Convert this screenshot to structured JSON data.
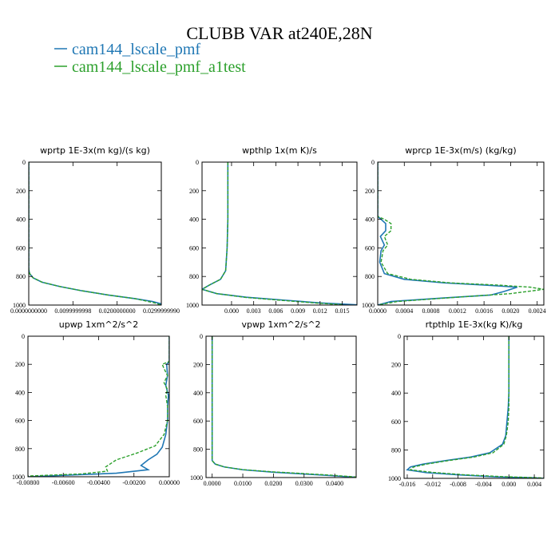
{
  "title": "CLUBB VAR at240E,28N",
  "colors": {
    "series1": "#1f77b4",
    "series2": "#2ca02c"
  },
  "legend": [
    {
      "label": "cam144_lscale_pmf",
      "color": "#1f77b4",
      "dash": "solid"
    },
    {
      "label": "cam144_lscale_pmf_a1test",
      "color": "#2ca02c",
      "dash": "dashed"
    }
  ],
  "chart_data": [
    {
      "type": "line",
      "title": "wprtp  1E-3x(m kg)/(s kg)",
      "xlim": [
        0,
        0.03
      ],
      "ylim": [
        1000,
        0
      ],
      "x_ticks": [
        0,
        0.01,
        0.02,
        0.03
      ],
      "x_tick_labels": [
        "0.0000000000",
        "0.0099999998",
        "0.0200000000",
        "0.0299999990"
      ],
      "y_ticks": [
        0,
        200,
        400,
        600,
        800,
        1000
      ],
      "y_tick_labels": [
        "0",
        "200",
        "400",
        "600",
        "800",
        "1000"
      ],
      "series": [
        {
          "points": [
            [
              0,
              0
            ],
            [
              0,
              200
            ],
            [
              0,
              400
            ],
            [
              0,
              600
            ],
            [
              0,
              750
            ],
            [
              0.0002,
              780
            ],
            [
              0.001,
              810
            ],
            [
              0.003,
              840
            ],
            [
              0.007,
              870
            ],
            [
              0.012,
              900
            ],
            [
              0.018,
              930
            ],
            [
              0.024,
              955
            ],
            [
              0.028,
              975
            ],
            [
              0.0298,
              990
            ],
            [
              0.03,
              1000
            ]
          ]
        },
        {
          "points": [
            [
              0,
              0
            ],
            [
              0,
              200
            ],
            [
              0,
              400
            ],
            [
              0,
              600
            ],
            [
              0,
              750
            ],
            [
              0.0002,
              780
            ],
            [
              0.001,
              810
            ],
            [
              0.003,
              840
            ],
            [
              0.007,
              870
            ],
            [
              0.012,
              900
            ],
            [
              0.018,
              930
            ],
            [
              0.024,
              955
            ],
            [
              0.0285,
              985
            ],
            [
              0.03,
              1000
            ]
          ]
        }
      ]
    },
    {
      "type": "line",
      "title": "wpthlp  1x(m K)/s",
      "xlim": [
        -0.004,
        0.017
      ],
      "ylim": [
        1000,
        0
      ],
      "x_ticks": [
        0,
        0.003,
        0.006,
        0.009,
        0.012,
        0.015
      ],
      "x_tick_labels": [
        "0.000",
        "0.003",
        "0.006",
        "0.009",
        "0.012",
        "0.015"
      ],
      "y_ticks": [
        0,
        200,
        400,
        600,
        800,
        1000
      ],
      "y_tick_labels": [
        "0",
        "200",
        "400",
        "600",
        "800",
        "1000"
      ],
      "series": [
        {
          "points": [
            [
              -0.0005,
              0
            ],
            [
              -0.0005,
              200
            ],
            [
              -0.0005,
              400
            ],
            [
              -0.0006,
              600
            ],
            [
              -0.0008,
              760
            ],
            [
              -0.0015,
              820
            ],
            [
              -0.003,
              860
            ],
            [
              -0.004,
              890
            ],
            [
              -0.002,
              920
            ],
            [
              0.002,
              945
            ],
            [
              0.007,
              965
            ],
            [
              0.012,
              985
            ],
            [
              0.017,
              998
            ]
          ]
        },
        {
          "points": [
            [
              -0.0005,
              0
            ],
            [
              -0.0005,
              200
            ],
            [
              -0.0005,
              400
            ],
            [
              -0.0006,
              600
            ],
            [
              -0.0008,
              760
            ],
            [
              -0.0015,
              820
            ],
            [
              -0.003,
              860
            ],
            [
              -0.004,
              890
            ],
            [
              -0.002,
              920
            ],
            [
              0.002,
              947
            ],
            [
              0.007,
              968
            ],
            [
              0.012,
              988
            ],
            [
              0.015,
              997
            ]
          ]
        }
      ]
    },
    {
      "type": "line",
      "title": "wprcp  1E-3x(m/s) (kg/kg)",
      "xlim": [
        0,
        0.0025
      ],
      "ylim": [
        1000,
        0
      ],
      "x_ticks": [
        0,
        0.0004,
        0.0008,
        0.0012,
        0.0016,
        0.002,
        0.0024
      ],
      "x_tick_labels": [
        "0.0000",
        "0.0004",
        "0.0008",
        "0.0012",
        "0.0016",
        "0.0020",
        "0.0024"
      ],
      "y_ticks": [
        0,
        200,
        400,
        600,
        800,
        1000
      ],
      "y_tick_labels": [
        "0",
        "200",
        "400",
        "600",
        "800",
        "1000"
      ],
      "series": [
        {
          "points": [
            [
              0,
              0
            ],
            [
              0,
              200
            ],
            [
              0,
              380
            ],
            [
              5e-05,
              400
            ],
            [
              0.00012,
              430
            ],
            [
              0.00012,
              480
            ],
            [
              4e-05,
              520
            ],
            [
              0.0001,
              580
            ],
            [
              5e-05,
              620
            ],
            [
              3e-05,
              700
            ],
            [
              0.0001,
              780
            ],
            [
              0.0004,
              820
            ],
            [
              0.001,
              845
            ],
            [
              0.0016,
              860
            ],
            [
              0.0021,
              875
            ],
            [
              0.0019,
              905
            ],
            [
              0.0017,
              930
            ],
            [
              0.001,
              950
            ],
            [
              0.0002,
              975
            ],
            [
              0,
              1000
            ]
          ]
        },
        {
          "points": [
            [
              0,
              0
            ],
            [
              0,
              200
            ],
            [
              0,
              380
            ],
            [
              0.0001,
              400
            ],
            [
              0.0002,
              430
            ],
            [
              0.0002,
              480
            ],
            [
              0.0001,
              520
            ],
            [
              0.00015,
              580
            ],
            [
              8e-05,
              620
            ],
            [
              5e-05,
              700
            ],
            [
              0.00015,
              780
            ],
            [
              0.0005,
              820
            ],
            [
              0.0011,
              845
            ],
            [
              0.0018,
              860
            ],
            [
              0.0023,
              875
            ],
            [
              0.0025,
              890
            ],
            [
              0.002,
              920
            ],
            [
              0.0012,
              945
            ],
            [
              0.0003,
              975
            ],
            [
              0,
              1000
            ]
          ]
        }
      ]
    },
    {
      "type": "line",
      "title": "upwp  1xm^2/s^2",
      "xlim": [
        -0.008,
        0
      ],
      "ylim": [
        1000,
        0
      ],
      "x_ticks": [
        -0.008,
        -0.006,
        -0.004,
        -0.002,
        0
      ],
      "x_tick_labels": [
        "-0.00800",
        "-0.00600",
        "-0.00400",
        "-0.00200",
        "0.00000"
      ],
      "y_ticks": [
        0,
        200,
        400,
        600,
        800,
        1000
      ],
      "y_tick_labels": [
        "0",
        "200",
        "400",
        "600",
        "800",
        "1000"
      ],
      "series": [
        {
          "points": [
            [
              0,
              0
            ],
            [
              0,
              180
            ],
            [
              -0.00015,
              200
            ],
            [
              -0.0001,
              280
            ],
            [
              -0.0002,
              350
            ],
            [
              -5e-05,
              420
            ],
            [
              -0.0001,
              500
            ],
            [
              -0.0001,
              600
            ],
            [
              -0.0002,
              700
            ],
            [
              -0.0004,
              790
            ],
            [
              -0.0007,
              840
            ],
            [
              -0.0012,
              880
            ],
            [
              -0.0016,
              920
            ],
            [
              -0.0012,
              950
            ],
            [
              -0.003,
              975
            ],
            [
              -0.006,
              990
            ],
            [
              -0.008,
              1000
            ]
          ]
        },
        {
          "points": [
            [
              0,
              0
            ],
            [
              0,
              180
            ],
            [
              -0.0004,
              200
            ],
            [
              -0.0003,
              230
            ],
            [
              -0.0001,
              280
            ],
            [
              -0.0003,
              330
            ],
            [
              -0.0001,
              380
            ],
            [
              -0.0002,
              420
            ],
            [
              -0.0001,
              500
            ],
            [
              -0.0001,
              600
            ],
            [
              -0.0003,
              700
            ],
            [
              -0.0008,
              780
            ],
            [
              -0.0018,
              830
            ],
            [
              -0.003,
              880
            ],
            [
              -0.0036,
              930
            ],
            [
              -0.0035,
              960
            ],
            [
              -0.005,
              980
            ],
            [
              -0.008,
              995
            ]
          ]
        }
      ]
    },
    {
      "type": "line",
      "title": "vpwp  1xm^2/s^2",
      "xlim": [
        -0.002,
        0.047
      ],
      "ylim": [
        1000,
        0
      ],
      "x_ticks": [
        0,
        0.01,
        0.02,
        0.03,
        0.04
      ],
      "x_tick_labels": [
        "0.0000",
        "0.0100",
        "0.0200",
        "0.0300",
        "0.0400"
      ],
      "y_ticks": [
        0,
        200,
        400,
        600,
        800,
        1000
      ],
      "y_tick_labels": [
        "0",
        "200",
        "400",
        "600",
        "800",
        "1000"
      ],
      "series": [
        {
          "points": [
            [
              0,
              0
            ],
            [
              0,
              200
            ],
            [
              0,
              400
            ],
            [
              0,
              600
            ],
            [
              0,
              800
            ],
            [
              0,
              880
            ],
            [
              0.001,
              905
            ],
            [
              0.004,
              925
            ],
            [
              0.01,
              945
            ],
            [
              0.02,
              962
            ],
            [
              0.03,
              975
            ],
            [
              0.04,
              988
            ],
            [
              0.047,
              998
            ]
          ]
        },
        {
          "points": [
            [
              0,
              0
            ],
            [
              0,
              200
            ],
            [
              0,
              400
            ],
            [
              0,
              600
            ],
            [
              0,
              800
            ],
            [
              0,
              880
            ],
            [
              0.001,
              905
            ],
            [
              0.004,
              925
            ],
            [
              0.01,
              944
            ],
            [
              0.02,
              960
            ],
            [
              0.03,
              972
            ],
            [
              0.04,
              985
            ],
            [
              0.047,
              996
            ]
          ]
        }
      ]
    },
    {
      "type": "line",
      "title": "rtpthlp  1E-3x(kg K)/kg",
      "xlim": [
        -0.0165,
        0.0055
      ],
      "ylim": [
        1000,
        0
      ],
      "x_ticks": [
        -0.016,
        -0.012,
        -0.008,
        -0.004,
        0,
        0.004
      ],
      "x_tick_labels": [
        "-0.016",
        "-0.012",
        "-0.008",
        "-0.004",
        "0.000",
        "0.004"
      ],
      "y_ticks": [
        0,
        200,
        400,
        600,
        800,
        1000
      ],
      "y_tick_labels": [
        "0",
        "200",
        "400",
        "600",
        "800",
        "1000"
      ],
      "series": [
        {
          "points": [
            [
              0,
              0
            ],
            [
              0,
              200
            ],
            [
              0,
              400
            ],
            [
              -0.0001,
              500
            ],
            [
              -0.0003,
              600
            ],
            [
              -0.0005,
              700
            ],
            [
              -0.001,
              760
            ],
            [
              -0.003,
              820
            ],
            [
              -0.006,
              850
            ],
            [
              -0.01,
              875
            ],
            [
              -0.0135,
              900
            ],
            [
              -0.0155,
              920
            ],
            [
              -0.016,
              940
            ],
            [
              -0.013,
              960
            ],
            [
              -0.008,
              975
            ],
            [
              -0.002,
              990
            ],
            [
              0.004,
              996
            ],
            [
              0.0055,
              1000
            ]
          ]
        },
        {
          "points": [
            [
              0,
              0
            ],
            [
              0,
              200
            ],
            [
              0,
              400
            ],
            [
              0,
              500
            ],
            [
              -0.0001,
              600
            ],
            [
              -0.0004,
              700
            ],
            [
              -0.0008,
              760
            ],
            [
              -0.0025,
              820
            ],
            [
              -0.0055,
              850
            ],
            [
              -0.0095,
              875
            ],
            [
              -0.013,
              900
            ],
            [
              -0.015,
              920
            ],
            [
              -0.0155,
              940
            ],
            [
              -0.012,
              958
            ],
            [
              -0.007,
              975
            ],
            [
              -0.001,
              988
            ],
            [
              0.004,
              995
            ],
            [
              0.0055,
              998
            ]
          ]
        }
      ]
    }
  ]
}
